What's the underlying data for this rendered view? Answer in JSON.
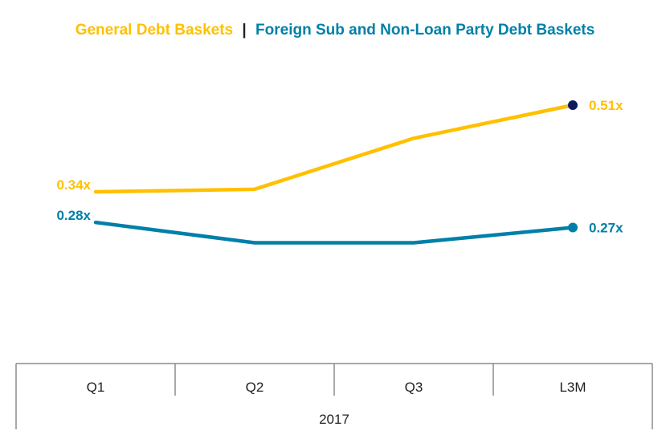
{
  "title": {
    "part1": "General Debt Baskets",
    "separator": "|",
    "part2": "Foreign Sub and Non-Loan Party Debt Baskets"
  },
  "colors": {
    "series1": "#FFC000",
    "series2": "#0080A8",
    "endpoint1": "#0E1A5C",
    "axis": "#8C8C8C",
    "separator": "#222222"
  },
  "chart_data": {
    "type": "line",
    "categories": [
      "Q1",
      "Q2",
      "Q3",
      "L3M"
    ],
    "group_label": "2017",
    "series": [
      {
        "name": "General Debt Baskets",
        "values": [
          0.34,
          0.345,
          0.445,
          0.51
        ],
        "labels": [
          "0.34x",
          "",
          "",
          "0.51x"
        ]
      },
      {
        "name": "Foreign Sub and Non-Loan Party Debt Baskets",
        "values": [
          0.28,
          0.24,
          0.24,
          0.27
        ],
        "labels": [
          "0.28x",
          "",
          "",
          "0.27x"
        ]
      }
    ],
    "ylim": [
      0.05,
      0.7
    ],
    "grid": false,
    "legend": "top-center"
  }
}
